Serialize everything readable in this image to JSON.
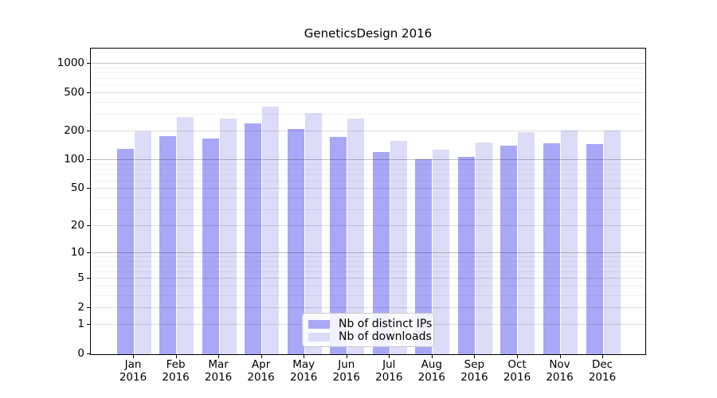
{
  "chart_data": {
    "type": "bar",
    "title": "GeneticsDesign 2016",
    "categories": [
      "Jan",
      "Feb",
      "Mar",
      "Apr",
      "May",
      "Jun",
      "Jul",
      "Aug",
      "Sep",
      "Oct",
      "Nov",
      "Dec"
    ],
    "category_year": "2016",
    "series": [
      {
        "name": "Nb of distinct IPs",
        "color": "#a8a8f7",
        "values": [
          131,
          177,
          170,
          240,
          210,
          175,
          121,
          103,
          108,
          142,
          150,
          147
        ]
      },
      {
        "name": "Nb of downloads",
        "color": "#dcdcf8",
        "values": [
          201,
          281,
          270,
          361,
          312,
          271,
          158,
          129,
          154,
          198,
          205,
          203
        ]
      }
    ],
    "yscale": "log1p",
    "ylim": [
      0,
      1000
    ],
    "yticks": [
      0,
      1,
      2,
      5,
      10,
      20,
      50,
      100,
      200,
      500,
      1000
    ],
    "yticks_minor": [
      3,
      4,
      6,
      7,
      8,
      9,
      30,
      40,
      60,
      70,
      80,
      90,
      300,
      400,
      600,
      700,
      800,
      900
    ],
    "grid": "on",
    "legend_position": "bottom-center"
  }
}
